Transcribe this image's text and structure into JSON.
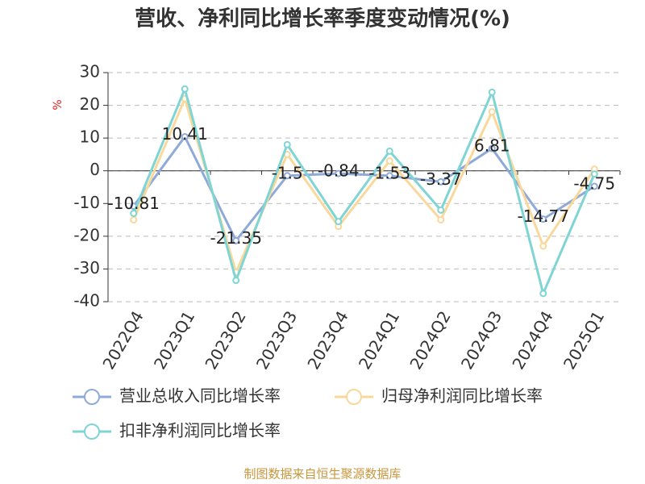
{
  "chart_data": {
    "type": "line",
    "title": "营收、净利同比增长率季度变动情况(%)",
    "y_label": "%",
    "categories": [
      "2022Q4",
      "2023Q1",
      "2023Q2",
      "2023Q3",
      "2023Q4",
      "2024Q1",
      "2024Q2",
      "2024Q3",
      "2024Q4",
      "2025Q1"
    ],
    "series": [
      {
        "name": "营业总收入同比增长率",
        "color": "#8fa9d9",
        "values": [
          -10.81,
          10.41,
          -21.35,
          -1.5,
          -0.84,
          -1.53,
          -3.37,
          6.81,
          -14.77,
          -4.75
        ],
        "show_labels": true
      },
      {
        "name": "归母净利润同比增长率",
        "color": "#f9d89c",
        "values": [
          -15,
          22,
          -31,
          5,
          -17,
          3,
          -15,
          18,
          -23,
          0.5
        ]
      },
      {
        "name": "扣非净利润同比增长率",
        "color": "#7fd4d4",
        "values": [
          -13,
          25,
          -33.5,
          8,
          -15.5,
          6,
          -12,
          24,
          -37.5,
          -1
        ]
      }
    ],
    "ylim": [
      -40,
      30
    ],
    "yticks": [
      -40,
      -30,
      -20,
      -10,
      0,
      10,
      20,
      30
    ],
    "grid": true,
    "source": "制图数据来自恒生聚源数据库"
  }
}
